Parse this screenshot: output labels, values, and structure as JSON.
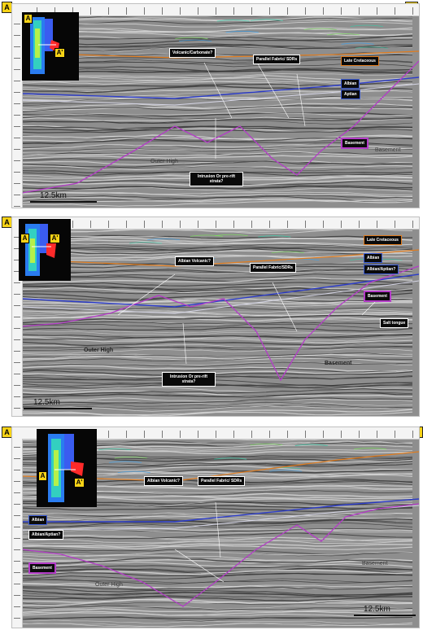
{
  "corner_start": "A",
  "corner_end": "A'",
  "panels": [
    {
      "map_labels": [
        "A",
        "A'"
      ],
      "labels": {
        "volcanic": "Volcanic/Carbonate?",
        "parallel": "Parallel Fabric/ SDRs",
        "late_cretaceous": "Late Cretaceous",
        "albian": "Albian",
        "aptian": "Aptian",
        "basement_box": "Basement",
        "intrusion": "Intrusion Or pre-rift strata?"
      },
      "geo_text": {
        "outer_high": "Outer High",
        "basement": "Basement"
      },
      "scale": "12.5km"
    },
    {
      "map_labels": [
        "A",
        "A'"
      ],
      "labels": {
        "late_cretaceous": "Late Cretaceous",
        "albian_volcanic": "Albian Volcanic?",
        "parallel": "Parallel Fabric/SDRs",
        "albian": "Albian",
        "albian_aptian": "Albian/Aptian?",
        "basement_box": "Basement",
        "salt": "Salt tongue",
        "intrusion": "Intrusion Or pre-rift strata?"
      },
      "geo_text": {
        "outer_high": "Outer High",
        "basement": "Basement"
      },
      "scale": "12.5km"
    },
    {
      "map_labels": [
        "A",
        "A'"
      ],
      "labels": {
        "albian_volcanic": "Albian Volcanic?",
        "parallel": "Parallel Fabric/ SDRs",
        "albian": "Albian",
        "albian_aptian": "Albian/Aptian?",
        "basement_box": "Basement"
      },
      "geo_text": {
        "outer_high": "Outer High",
        "basement": "Basement"
      },
      "scale": "12.5km"
    }
  ],
  "colors": {
    "late_cretaceous": "#e07c1e",
    "albian": "#2c3cc8",
    "aptian": "#d6d6e6",
    "basement": "#b43cc8",
    "label_bg": "#0a0a0a",
    "corner": "#f7d316"
  }
}
